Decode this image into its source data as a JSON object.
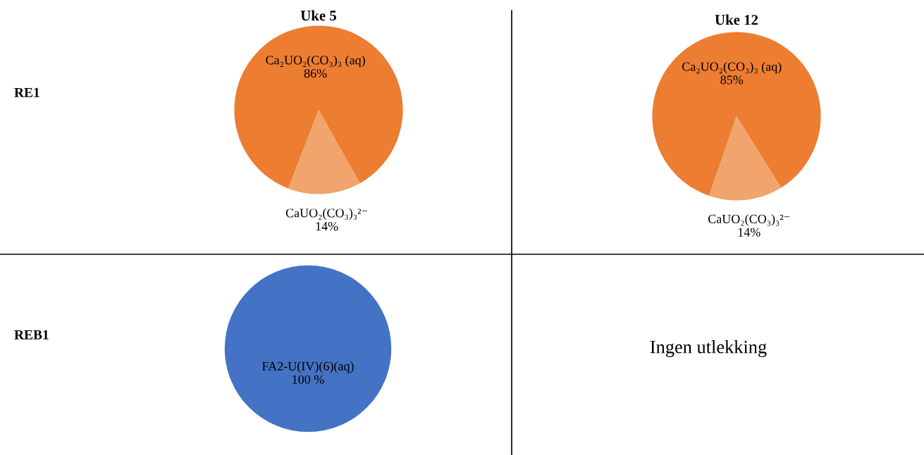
{
  "chart_data": [
    {
      "type": "pie",
      "title": "Uke 5",
      "categories": [
        "Ca₂UO₂(CO₃)₃ (aq)",
        "CaUO₂(CO₃)₃²⁻"
      ],
      "values": [
        86,
        14
      ],
      "colors": [
        "#ed7d31",
        "#f1a46c"
      ],
      "value_labels": [
        "86%",
        "14%"
      ],
      "annotations": [
        "RE1"
      ]
    },
    {
      "type": "pie",
      "title": "Uke 12",
      "categories": [
        "Ca₂UO₂(CO₃)₃ (aq)",
        "CaUO₂(CO₃)₃²⁻"
      ],
      "values": [
        85,
        14
      ],
      "colors": [
        "#ed7d31",
        "#f1a46c"
      ],
      "value_labels": [
        "85%",
        "14%"
      ]
    },
    {
      "type": "pie",
      "categories": [
        "FA2-U(IV)(6)(aq)"
      ],
      "values": [
        100
      ],
      "colors": [
        "#4472c4"
      ],
      "value_labels": [
        "100 %"
      ],
      "annotations": [
        "REB1"
      ]
    },
    {
      "type": "other",
      "annotations": [
        "Ingen utlekking"
      ]
    }
  ]
}
